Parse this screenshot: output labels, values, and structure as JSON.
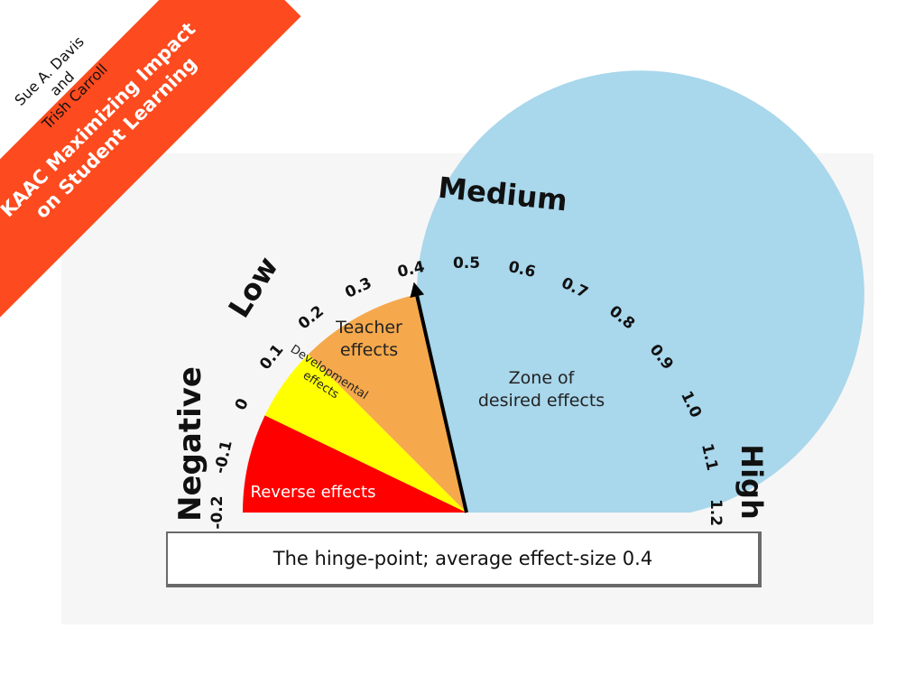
{
  "banner": {
    "authors": [
      "Sue A. Davis",
      "and",
      "Trish Carroll"
    ],
    "title_lines": [
      "KAAC Maximizing Impact",
      "on Student Learning"
    ],
    "color": "#fd4a1e"
  },
  "gauge": {
    "categories": {
      "negative": "Negative",
      "low": "Low",
      "medium": "Medium",
      "high": "High"
    },
    "ticks": [
      "-0.2",
      "-0.1",
      "0",
      "0.1",
      "0.2",
      "0.3",
      "0.4",
      "0.5",
      "0.6",
      "0.7",
      "0.8",
      "0.9",
      "1.0",
      "1.1",
      "1.2"
    ],
    "zones": [
      {
        "key": "reverse",
        "label_lines": [
          "Reverse effects"
        ],
        "from": -0.2,
        "to": 0.0,
        "color": "#ff0000"
      },
      {
        "key": "developmental",
        "label_lines": [
          "Developmental",
          "effects"
        ],
        "from": 0.0,
        "to": 0.15,
        "color": "#ffff00"
      },
      {
        "key": "teacher",
        "label_lines": [
          "Teacher",
          "effects"
        ],
        "from": 0.15,
        "to": 0.4,
        "color": "#f5a94c"
      },
      {
        "key": "desired",
        "label_lines": [
          "Zone of",
          "desired effects"
        ],
        "from": 0.4,
        "to": 1.2,
        "color": "#a9d7ec"
      }
    ],
    "hinge_point": 0.4,
    "caption": "The hinge-point; average effect-size 0.4"
  }
}
